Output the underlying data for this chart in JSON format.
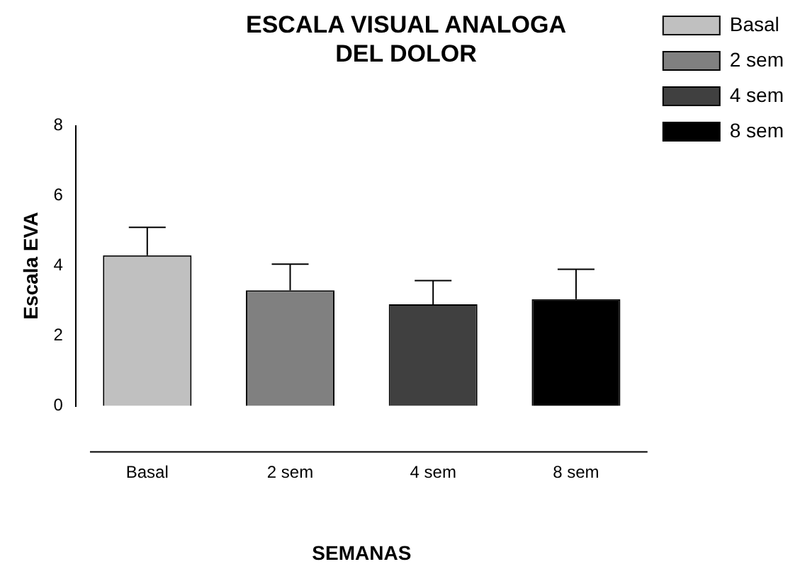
{
  "chart_data": {
    "type": "bar",
    "title": "ESCALA VISUAL ANALOGA DEL DOLOR",
    "xlabel": "SEMANAS",
    "ylabel": "Escala EVA",
    "categories": [
      "Basal",
      "2 sem",
      "4 sem",
      "8 sem"
    ],
    "series": [
      {
        "name": "Basal",
        "color": "#c0c0c0",
        "values": [
          4.3,
          null,
          null,
          null
        ],
        "errors": [
          [
            4.3,
            5.1
          ],
          null,
          null,
          null
        ]
      },
      {
        "name": "2 sem",
        "color": "#808080",
        "values": [
          null,
          3.3,
          null,
          null
        ],
        "errors": [
          null,
          [
            3.3,
            4.05
          ],
          null,
          null
        ]
      },
      {
        "name": "4 sem",
        "color": "#404040",
        "values": [
          null,
          null,
          2.9,
          null
        ],
        "errors": [
          null,
          null,
          [
            2.9,
            3.58
          ],
          null
        ]
      },
      {
        "name": "8 sem",
        "color": "#000000",
        "values": [
          null,
          null,
          null,
          3.05
        ],
        "errors": [
          null,
          null,
          null,
          [
            3.05,
            3.9
          ]
        ]
      }
    ],
    "ylim": [
      0,
      8
    ],
    "yticks": [
      0,
      2,
      4,
      6,
      8
    ],
    "grid": false,
    "legend": "right"
  }
}
